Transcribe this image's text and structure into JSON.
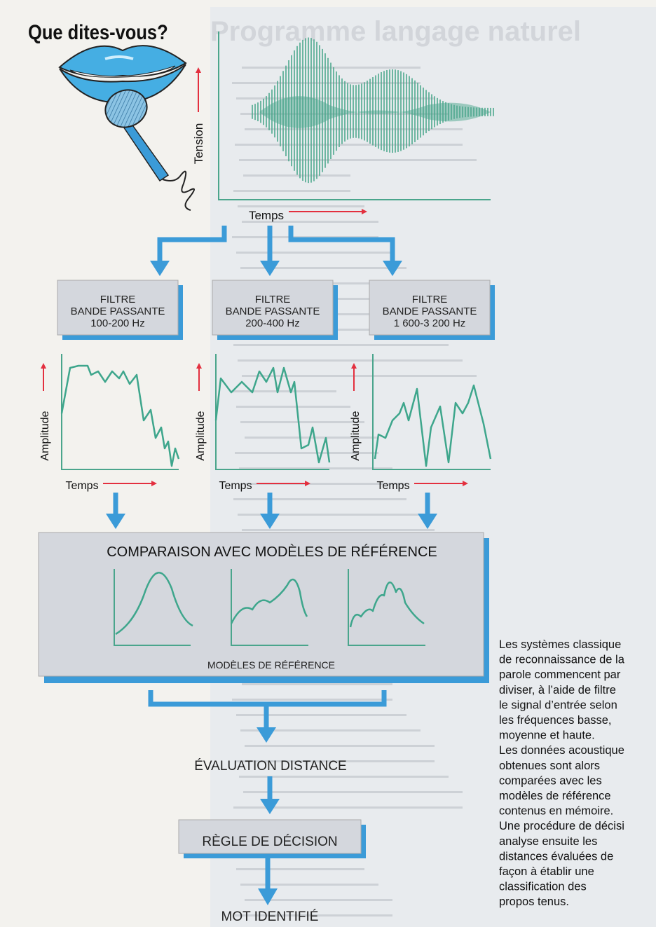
{
  "title": "Que dites-vous?",
  "background_title": "Programme langage naturel",
  "signal": {
    "y_label": "Tension",
    "x_label": "Temps"
  },
  "filters": [
    {
      "lines": [
        "FILTRE",
        "BANDE PASSANTE",
        "100-200 Hz"
      ]
    },
    {
      "lines": [
        "FILTRE",
        "BANDE PASSANTE",
        "200-400 Hz"
      ]
    },
    {
      "lines": [
        "FILTRE",
        "BANDE PASSANTE",
        "1 600-3 200 Hz"
      ]
    }
  ],
  "plots": [
    {
      "y_label": "Amplitude",
      "x_label": "Temps"
    },
    {
      "y_label": "Amplitude",
      "x_label": "Temps"
    },
    {
      "y_label": "Amplitude",
      "x_label": "Temps"
    }
  ],
  "comparison": {
    "title": "COMPARAISON AVEC MODÈLES DE RÉFÉRENCE",
    "subtitle": "MODÈLES DE RÉFÉRENCE"
  },
  "steps": [
    "ÉVALUATION DISTANCE",
    "RÈGLE DE DÉCISION",
    "MOT IDENTIFIÉ"
  ],
  "caption": [
    "Les systèmes classique",
    "de reconnaissance de la",
    "parole commencent par",
    "diviser, à l’aide de filtre",
    "le signal d’entrée selon",
    "les fréquences basse,",
    "moyenne et haute.",
    "Les données acoustique",
    "obtenues sont alors",
    "comparées avec les",
    "modèles de référence",
    "contenus en mémoire.",
    "Une procédure de décisi",
    "analyse ensuite les",
    "distances évaluées de",
    "façon à établir une",
    "classification des",
    "propos tenus."
  ]
}
